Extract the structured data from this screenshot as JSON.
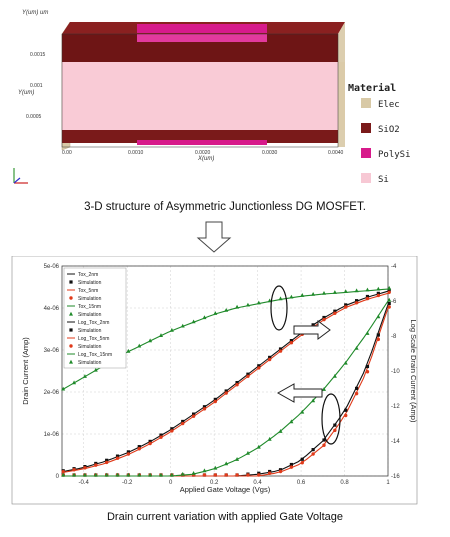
{
  "structure": {
    "axis_labels": {
      "top": "Y(um) um",
      "left": "Y(um)",
      "bottom": "X(um)"
    },
    "ticks_y": [
      "0.0005",
      "0.001",
      "0.0015"
    ],
    "ticks_x": [
      "0.00",
      "0.0010",
      "0.0020",
      "0.0030",
      "0.0040"
    ],
    "legend_title": "Material",
    "materials": [
      {
        "name": "Elec",
        "color": "#d8c9a6"
      },
      {
        "name": "SiO2",
        "color": "#7a1a1a"
      },
      {
        "name": "PolySi",
        "color": "#d71a8b"
      },
      {
        "name": "Si",
        "color": "#f7c8d4"
      }
    ],
    "caption": "3-D structure of Asymmetric Junctionless DG MOSFET."
  },
  "arrow_icon": "down-arrow-icon",
  "chart_caption": "Drain current variation with applied Gate Voltage",
  "chart_data": {
    "type": "line",
    "xlabel": "Applied Gate Voltage (Vgs)",
    "ylabel_left": "Drain Current (Amp)",
    "ylabel_right": "Log Scale Drain Current (Amp)",
    "xlim": [
      -0.5,
      1.0
    ],
    "ylim_left": [
      0,
      5e-06
    ],
    "ylim_right": [
      -16,
      -4
    ],
    "x_ticks": [
      "-0.4",
      "-0.2",
      "0",
      "0.2",
      "0.4",
      "0.6",
      "0.8",
      "1"
    ],
    "x_tick_values": [
      -0.4,
      -0.2,
      0,
      0.2,
      0.4,
      0.6,
      0.8,
      1.0
    ],
    "y_left_ticks": [
      "0",
      "1e-06",
      "2e-06",
      "3e-06",
      "4e-06",
      "5e-06"
    ],
    "y_left_tick_values": [
      0,
      1e-06,
      2e-06,
      3e-06,
      4e-06,
      5e-06
    ],
    "y_right_ticks": [
      "-16",
      "-14",
      "-12",
      "-10",
      "-8",
      "-6",
      "-4"
    ],
    "y_right_tick_values": [
      -16,
      -14,
      -12,
      -10,
      -8,
      -6,
      -4
    ],
    "x": [
      -0.5,
      -0.4,
      -0.3,
      -0.2,
      -0.1,
      0,
      0.1,
      0.2,
      0.3,
      0.4,
      0.5,
      0.6,
      0.7,
      0.8,
      0.9,
      1.0
    ],
    "series": [
      {
        "name": "Tox_2nm",
        "axis": "left",
        "color": "#111111",
        "values": [
          1e-07,
          2e-07,
          3.5e-07,
          5.5e-07,
          8e-07,
          1.1e-06,
          1.45e-06,
          1.8e-06,
          2.2e-06,
          2.6e-06,
          3e-06,
          3.4e-06,
          3.75e-06,
          4.05e-06,
          4.25e-06,
          4.4e-06
        ]
      },
      {
        "name": "Tox_5nm",
        "axis": "left",
        "color": "#e03a1a",
        "values": [
          8e-08,
          1.7e-07,
          3e-07,
          5e-07,
          7.5e-07,
          1.05e-06,
          1.4e-06,
          1.75e-06,
          2.15e-06,
          2.55e-06,
          2.95e-06,
          3.35e-06,
          3.7e-06,
          4e-06,
          4.2e-06,
          4.35e-06
        ]
      },
      {
        "name": "Tox_15nm",
        "axis": "left",
        "color": "#1f8a2a",
        "values": [
          2.05e-06,
          2.35e-06,
          2.65e-06,
          2.95e-06,
          3.2e-06,
          3.45e-06,
          3.65e-06,
          3.85e-06,
          4e-06,
          4.1e-06,
          4.2e-06,
          4.28e-06,
          4.33e-06,
          4.37e-06,
          4.41e-06,
          4.45e-06
        ]
      },
      {
        "name": "Log_Tox_2nm",
        "axis": "right",
        "color": "#111111",
        "values": [
          -16,
          -16,
          -16,
          -16,
          -16,
          -16,
          -16,
          -16,
          -16,
          -15.9,
          -15.7,
          -15.1,
          -14,
          -12.3,
          -9.8,
          -6.2
        ]
      },
      {
        "name": "Log_Tox_5nm",
        "axis": "right",
        "color": "#e03a1a",
        "values": [
          -16,
          -16,
          -16,
          -16,
          -16,
          -16,
          -16,
          -16,
          -16,
          -16,
          -15.8,
          -15.3,
          -14.3,
          -12.6,
          -10.1,
          -6.4
        ]
      },
      {
        "name": "Log_Tox_15nm",
        "axis": "right",
        "color": "#1f8a2a",
        "values": [
          -16,
          -16,
          -16,
          -16,
          -16,
          -16,
          -15.9,
          -15.6,
          -15.1,
          -14.4,
          -13.5,
          -12.4,
          -11.1,
          -9.6,
          -7.9,
          -6.0
        ]
      }
    ],
    "legend": {
      "placement": "top-left",
      "entries": [
        {
          "label": "Tox_2nm",
          "color": "#111111",
          "marker": "line"
        },
        {
          "label": "Simulation",
          "color": "#111111",
          "marker": "square"
        },
        {
          "label": "Tox_5nm",
          "color": "#e03a1a",
          "marker": "line"
        },
        {
          "label": "Simulation",
          "color": "#e03a1a",
          "marker": "circle"
        },
        {
          "label": "Tox_15nm",
          "color": "#1f8a2a",
          "marker": "line"
        },
        {
          "label": "Simulation",
          "color": "#1f8a2a",
          "marker": "triangle"
        },
        {
          "label": "Log_Tox_2nm",
          "color": "#111111",
          "marker": "line"
        },
        {
          "label": "Simulation",
          "color": "#111111",
          "marker": "square"
        },
        {
          "label": "Log_Tox_5nm",
          "color": "#e03a1a",
          "marker": "line"
        },
        {
          "label": "Simulation",
          "color": "#e03a1a",
          "marker": "circle"
        },
        {
          "label": "Log_Tox_15nm",
          "color": "#1f8a2a",
          "marker": "line"
        },
        {
          "label": "Simulation",
          "color": "#1f8a2a",
          "marker": "triangle"
        }
      ]
    },
    "grid": true
  }
}
